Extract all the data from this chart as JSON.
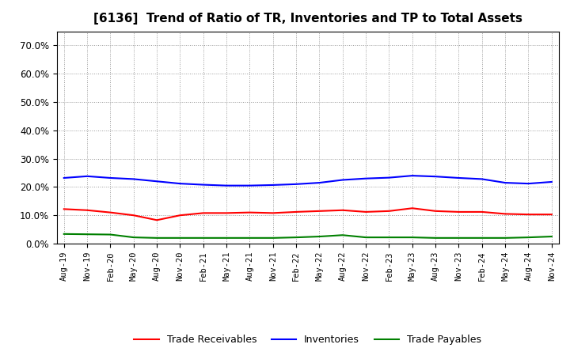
{
  "title": "[6136]  Trend of Ratio of TR, Inventories and TP to Total Assets",
  "x_labels": [
    "Aug-19",
    "Nov-19",
    "Feb-20",
    "May-20",
    "Aug-20",
    "Nov-20",
    "Feb-21",
    "May-21",
    "Aug-21",
    "Nov-21",
    "Feb-22",
    "May-22",
    "Aug-22",
    "Nov-22",
    "Feb-23",
    "May-23",
    "Aug-23",
    "Nov-23",
    "Feb-24",
    "May-24",
    "Aug-24",
    "Nov-24"
  ],
  "trade_receivables": [
    0.122,
    0.118,
    0.11,
    0.1,
    0.083,
    0.1,
    0.108,
    0.108,
    0.11,
    0.108,
    0.112,
    0.115,
    0.118,
    0.112,
    0.115,
    0.125,
    0.115,
    0.112,
    0.112,
    0.105,
    0.103,
    0.103
  ],
  "inventories": [
    0.232,
    0.238,
    0.232,
    0.228,
    0.22,
    0.212,
    0.208,
    0.205,
    0.205,
    0.207,
    0.21,
    0.215,
    0.225,
    0.23,
    0.233,
    0.24,
    0.237,
    0.232,
    0.228,
    0.215,
    0.212,
    0.218
  ],
  "trade_payables": [
    0.034,
    0.033,
    0.032,
    0.022,
    0.02,
    0.02,
    0.02,
    0.02,
    0.02,
    0.02,
    0.022,
    0.025,
    0.03,
    0.022,
    0.022,
    0.022,
    0.02,
    0.02,
    0.02,
    0.02,
    0.022,
    0.025
  ],
  "tr_color": "#ff0000",
  "inv_color": "#0000ff",
  "tp_color": "#008000",
  "ylim": [
    0.0,
    0.75
  ],
  "yticks": [
    0.0,
    0.1,
    0.2,
    0.3,
    0.4,
    0.5,
    0.6,
    0.7
  ],
  "legend_labels": [
    "Trade Receivables",
    "Inventories",
    "Trade Payables"
  ],
  "background_color": "#ffffff",
  "grid_color": "#aaaaaa"
}
